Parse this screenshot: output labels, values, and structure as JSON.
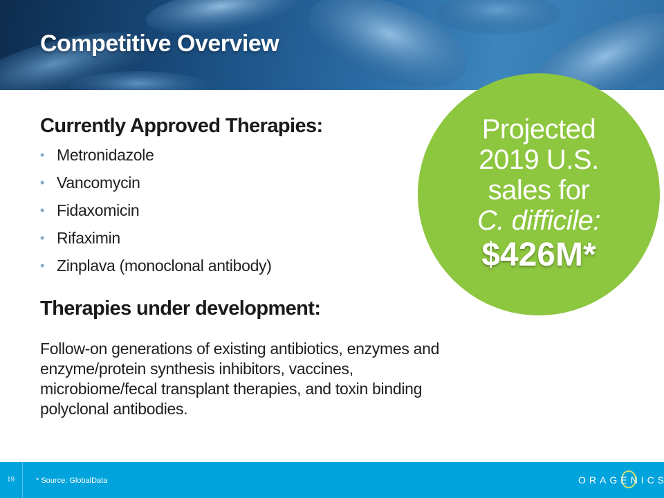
{
  "slide": {
    "title": "Competitive Overview",
    "page_number": "19"
  },
  "approved": {
    "heading": "Currently Approved Therapies:",
    "items": [
      "Metronidazole",
      "Vancomycin",
      "Fidaxomicin",
      "Rifaximin",
      "Zinplava (monoclonal antibody)"
    ]
  },
  "development": {
    "heading": "Therapies under development:",
    "text": "Follow-on generations of existing antibiotics, enzymes and enzyme/protein synthesis inhibitors, vaccines, microbiome/fecal transplant therapies, and toxin binding polyclonal antibodies."
  },
  "callout": {
    "line1": "Projected",
    "line2": "2019 U.S.",
    "line3": "sales for",
    "line4": "C. difficile:",
    "amount": "$426M*",
    "color": "#8dc63f"
  },
  "footer": {
    "source": "* Source: GlobalData",
    "logo": "ORAGENICS",
    "color": "#00a3dc"
  }
}
